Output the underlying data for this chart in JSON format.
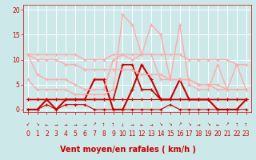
{
  "background_color": "#cce8e8",
  "grid_color": "#ffffff",
  "xlabel": "Vent moyen/en rafales ( km/h )",
  "xlabel_color": "#cc0000",
  "xlabel_fontsize": 7,
  "tick_color": "#cc0000",
  "tick_fontsize": 5.5,
  "ylim": [
    -0.5,
    21
  ],
  "xlim": [
    -0.5,
    23.5
  ],
  "yticks": [
    0,
    5,
    10,
    15,
    20
  ],
  "xticks": [
    0,
    1,
    2,
    3,
    4,
    5,
    6,
    7,
    8,
    9,
    10,
    11,
    12,
    13,
    14,
    15,
    16,
    17,
    18,
    19,
    20,
    21,
    22,
    23
  ],
  "series": [
    {
      "x": [
        0,
        1,
        2,
        3,
        4,
        5,
        6,
        7,
        8,
        9,
        10,
        11,
        12,
        13,
        14,
        15,
        16,
        17,
        18,
        19,
        20,
        21,
        22,
        23
      ],
      "y": [
        2,
        2,
        2,
        2,
        2,
        2,
        2,
        2,
        2,
        2,
        2,
        2,
        2,
        2,
        2,
        2,
        2,
        2,
        2,
        2,
        2,
        2,
        2,
        2
      ],
      "color": "#cc0000",
      "lw": 0.8
    },
    {
      "x": [
        0,
        1,
        2,
        3,
        4,
        5,
        6,
        7,
        8,
        9,
        10,
        11,
        12,
        13,
        14,
        15,
        16,
        17,
        18,
        19,
        20,
        21,
        22,
        23
      ],
      "y": [
        0,
        0,
        1,
        0,
        1,
        1,
        1,
        0,
        0,
        0,
        0,
        0,
        0,
        0,
        0,
        1,
        0,
        0,
        0,
        0,
        0,
        0,
        0,
        0
      ],
      "color": "#cc0000",
      "lw": 0.8
    },
    {
      "x": [
        0,
        1,
        2,
        3,
        4,
        5,
        6,
        7,
        8,
        9,
        10,
        11,
        12,
        13,
        14,
        15,
        16,
        17,
        18,
        19,
        20,
        21,
        22,
        23
      ],
      "y": [
        2,
        2,
        2,
        2,
        2,
        2,
        2,
        2,
        2,
        2,
        9,
        9,
        4,
        4,
        2,
        2,
        2,
        2,
        2,
        2,
        2,
        2,
        2,
        2
      ],
      "color": "#cc0000",
      "lw": 1.2
    },
    {
      "x": [
        0,
        1,
        2,
        3,
        4,
        5,
        6,
        7,
        8,
        9,
        10,
        11,
        12,
        13,
        14,
        15,
        16,
        17,
        18,
        19,
        20,
        21,
        22,
        23
      ],
      "y": [
        0,
        0,
        2,
        0,
        2,
        2,
        2,
        6,
        6,
        0,
        0,
        4,
        9,
        6,
        2,
        2,
        6,
        2,
        2,
        2,
        0,
        0,
        0,
        2
      ],
      "color": "#cc0000",
      "lw": 1.5
    },
    {
      "x": [
        0,
        1,
        2,
        3,
        4,
        5,
        6,
        7,
        8,
        9,
        10,
        11,
        12,
        13,
        14,
        15,
        16,
        17,
        18,
        19,
        20,
        21,
        22,
        23
      ],
      "y": [
        11,
        7,
        6,
        6,
        6,
        5,
        4,
        4,
        4,
        10,
        11,
        10,
        11,
        11,
        6,
        6,
        6,
        6,
        5,
        5,
        4,
        4,
        9,
        4
      ],
      "color": "#ffaaaa",
      "lw": 1.0
    },
    {
      "x": [
        0,
        1,
        2,
        3,
        4,
        5,
        6,
        7,
        8,
        9,
        10,
        11,
        12,
        13,
        14,
        15,
        16,
        17,
        18,
        19,
        20,
        21,
        22,
        23
      ],
      "y": [
        11,
        11,
        11,
        11,
        11,
        11,
        10,
        10,
        10,
        11,
        11,
        11,
        11,
        11,
        11,
        11,
        11,
        10,
        10,
        10,
        10,
        10,
        9,
        9
      ],
      "color": "#ffaaaa",
      "lw": 1.0
    },
    {
      "x": [
        0,
        1,
        2,
        3,
        4,
        5,
        6,
        7,
        8,
        9,
        10,
        11,
        12,
        13,
        14,
        15,
        16,
        17,
        18,
        19,
        20,
        21,
        22,
        23
      ],
      "y": [
        6,
        4,
        4,
        4,
        4,
        3,
        3,
        3,
        3,
        4,
        19,
        17,
        11,
        17,
        15,
        6,
        17,
        5,
        4,
        4,
        9,
        4,
        4,
        4
      ],
      "color": "#ffaaaa",
      "lw": 1.0
    },
    {
      "x": [
        0,
        1,
        2,
        3,
        4,
        5,
        6,
        7,
        8,
        9,
        10,
        11,
        12,
        13,
        14,
        15,
        16,
        17,
        18,
        19,
        20,
        21,
        22,
        23
      ],
      "y": [
        11,
        10,
        10,
        10,
        9,
        9,
        8,
        8,
        8,
        8,
        8,
        8,
        7,
        7,
        7,
        6,
        6,
        6,
        5,
        5,
        5,
        4,
        4,
        4
      ],
      "color": "#ffaaaa",
      "lw": 1.0
    }
  ],
  "arrow_symbols": [
    "↙",
    "↘",
    "←",
    "→",
    "→",
    "→",
    "→",
    "↗",
    "↑",
    "↑",
    "↓",
    "→",
    "←",
    "→",
    "↘",
    "↘",
    "↗",
    "↘",
    "→",
    "↘",
    "←",
    "↗",
    "↑",
    "↑"
  ]
}
